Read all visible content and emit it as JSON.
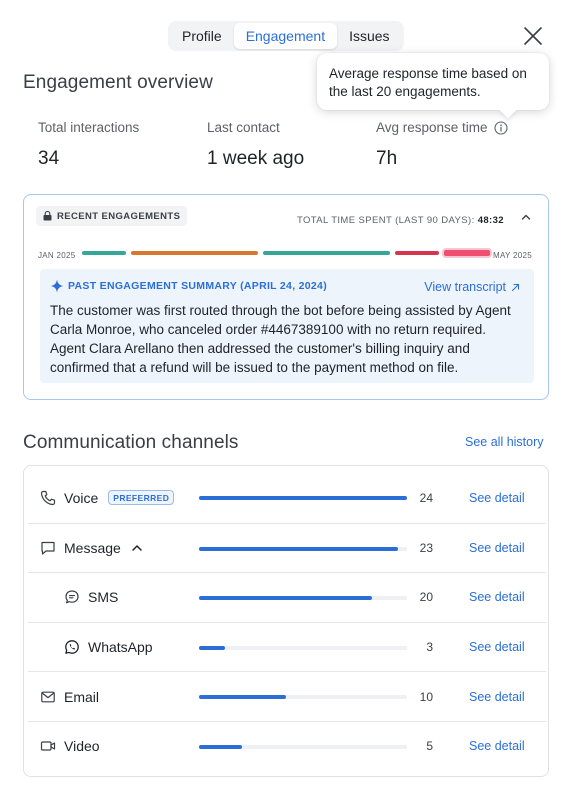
{
  "tabs": [
    {
      "label": "Profile",
      "active": false
    },
    {
      "label": "Engagement",
      "active": true
    },
    {
      "label": "Issues",
      "active": false
    }
  ],
  "tooltip": {
    "text": "Average response time based on the last 20 engagements."
  },
  "overview": {
    "title": "Engagement overview",
    "stats": [
      {
        "label": "Total interactions",
        "value": "34"
      },
      {
        "label": "Last contact",
        "value": "1 week ago"
      },
      {
        "label": "Avg response time",
        "value": "7h"
      }
    ]
  },
  "recent": {
    "heading": "RECENT ENGAGEMENTS",
    "total_label": "TOTAL TIME SPENT (LAST 90 DAYS):",
    "total_value": "48:32",
    "start_label": "JAN 2025",
    "end_label": "MAY 2025",
    "segment_colors": [
      "#34a69a",
      "#d9772e",
      "#34a69a",
      "#d63550",
      "#ee4f6e"
    ],
    "summary_title": "PAST ENGAGEMENT SUMMARY (APRIL 24, 2024)",
    "view_transcript": "View transcript",
    "summary_text": "The customer was first routed through the bot before being assisted by Agent Carla Monroe, who canceled order #4467389100 with no return required. Agent Clara Arellano then addressed the customer's billing inquiry and confirmed that a refund will be issued to the payment method on file."
  },
  "channels": {
    "title": "Communication channels",
    "see_all": "See all history",
    "max_value": 24,
    "rows": [
      {
        "name": "Voice",
        "icon": "phone-icon",
        "badge": "PREFERRED",
        "count": 24,
        "detail": "See detail",
        "indent": false
      },
      {
        "name": "Message",
        "icon": "message-icon",
        "expanded": true,
        "count": 23,
        "detail": "See detail",
        "indent": false
      },
      {
        "name": "SMS",
        "icon": "sms-icon",
        "count": 20,
        "detail": "See detail",
        "indent": true
      },
      {
        "name": "WhatsApp",
        "icon": "whatsapp-icon",
        "count": 3,
        "detail": "See detail",
        "indent": true
      },
      {
        "name": "Email",
        "icon": "mail-icon",
        "count": 10,
        "detail": "See detail",
        "indent": false
      },
      {
        "name": "Video",
        "icon": "video-icon",
        "count": 5,
        "detail": "See detail",
        "indent": false
      }
    ]
  },
  "colors": {
    "accent": "#2b6fd6",
    "card_border": "#a9c6ec"
  }
}
